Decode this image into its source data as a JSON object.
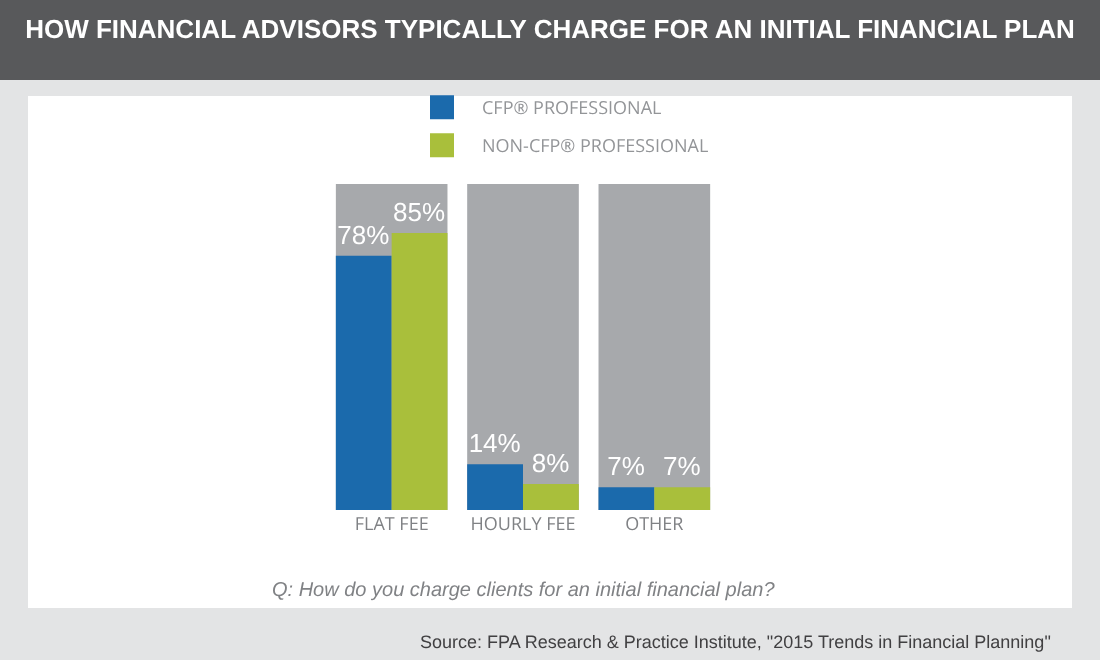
{
  "chart_data": {
    "type": "bar",
    "title": "HOW FINANCIAL ADVISORS TYPICALLY CHARGE FOR AN INITIAL FINANCIAL PLAN",
    "categories": [
      "FLAT FEE",
      "HOURLY FEE",
      "OTHER"
    ],
    "series": [
      {
        "name": "CFP® PROFESSIONAL",
        "color": "#1b6aac",
        "values": [
          78,
          14,
          7
        ],
        "value_labels": [
          "78%",
          "14%",
          "7%"
        ]
      },
      {
        "name": "NON-CFP® PROFESSIONAL",
        "color": "#a9bf3b",
        "values": [
          85,
          8,
          7
        ],
        "value_labels": [
          "85%",
          "8%",
          "7%"
        ]
      }
    ],
    "bands": [
      {
        "axis": "x",
        "from": "FLAT FEE",
        "to": "FLAT FEE",
        "color": "#a7a9ac"
      },
      {
        "axis": "x",
        "from": "HOURLY FEE",
        "to": "HOURLY FEE",
        "color": "#a7a9ac"
      },
      {
        "axis": "x",
        "from": "OTHER",
        "to": "OTHER",
        "color": "#a7a9ac"
      }
    ],
    "ylim": [
      0,
      100
    ],
    "tick_labels": "x",
    "grid": false,
    "legend": "top right",
    "annotations": [
      "Q: How do you charge clients for an initial financial plan?",
      "Source: FPA Research & Practice Institute, \"2015 Trends in Financial Planning\""
    ]
  }
}
